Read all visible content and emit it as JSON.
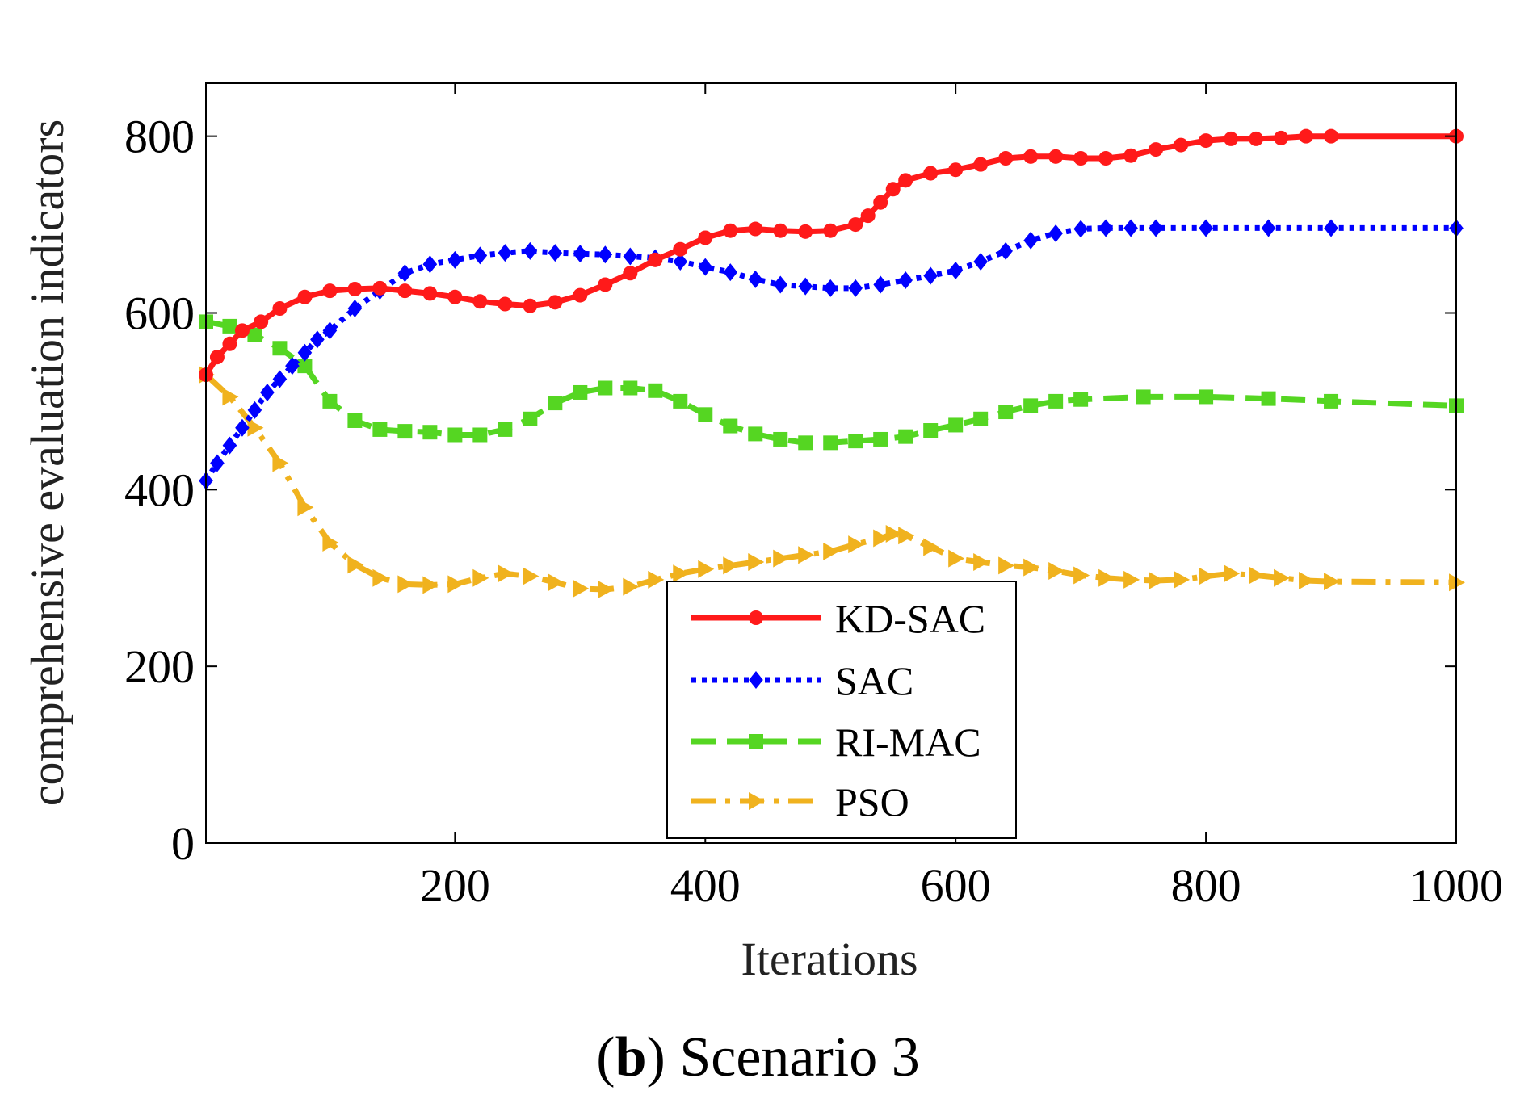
{
  "chart_data": {
    "type": "line",
    "xlabel": "Iterations",
    "ylabel": "comprehensive evaluation indicators",
    "xlim": [
      1,
      1000
    ],
    "ylim": [
      0,
      860
    ],
    "x_ticks": [
      200,
      400,
      600,
      800,
      1000
    ],
    "y_ticks": [
      0,
      200,
      400,
      600,
      800
    ],
    "grid": false,
    "legend_position": "bottom-center",
    "series": [
      {
        "name": "KD-SAC",
        "color": "#ff1a1a",
        "dash": "solid",
        "marker": "circle",
        "x": [
          1,
          10,
          20,
          30,
          45,
          60,
          80,
          100,
          120,
          140,
          160,
          180,
          200,
          220,
          240,
          260,
          280,
          300,
          320,
          340,
          360,
          380,
          400,
          420,
          440,
          460,
          480,
          500,
          520,
          530,
          540,
          550,
          560,
          580,
          600,
          620,
          640,
          660,
          680,
          700,
          720,
          740,
          760,
          780,
          800,
          820,
          840,
          860,
          880,
          900,
          1000
        ],
        "y": [
          530,
          550,
          565,
          580,
          590,
          605,
          618,
          625,
          627,
          628,
          625,
          622,
          618,
          613,
          610,
          608,
          612,
          620,
          632,
          645,
          660,
          672,
          685,
          693,
          695,
          693,
          692,
          693,
          700,
          710,
          725,
          740,
          750,
          758,
          762,
          768,
          775,
          777,
          777,
          775,
          775,
          778,
          785,
          790,
          795,
          797,
          797,
          798,
          800,
          800,
          800
        ]
      },
      {
        "name": "SAC",
        "color": "#0000ff",
        "dash": "dotted",
        "marker": "diamond",
        "x": [
          1,
          10,
          20,
          30,
          40,
          50,
          60,
          70,
          80,
          90,
          100,
          120,
          140,
          160,
          180,
          200,
          220,
          240,
          260,
          280,
          300,
          320,
          340,
          360,
          380,
          400,
          420,
          440,
          460,
          480,
          500,
          520,
          540,
          560,
          580,
          600,
          620,
          640,
          660,
          680,
          700,
          720,
          740,
          760,
          800,
          850,
          900,
          1000
        ],
        "y": [
          410,
          430,
          450,
          470,
          490,
          510,
          525,
          540,
          555,
          570,
          580,
          605,
          625,
          645,
          655,
          660,
          665,
          668,
          670,
          668,
          667,
          666,
          664,
          662,
          658,
          652,
          646,
          638,
          632,
          630,
          628,
          628,
          632,
          637,
          642,
          648,
          658,
          670,
          682,
          690,
          695,
          696,
          696,
          696,
          696,
          696,
          696,
          696
        ]
      },
      {
        "name": "RI-MAC",
        "color": "#55d622",
        "dash": "dashed",
        "marker": "square",
        "x": [
          1,
          20,
          40,
          60,
          80,
          100,
          120,
          140,
          160,
          180,
          200,
          220,
          240,
          260,
          280,
          300,
          320,
          340,
          360,
          380,
          400,
          420,
          440,
          460,
          480,
          500,
          520,
          540,
          560,
          580,
          600,
          620,
          640,
          660,
          680,
          700,
          750,
          800,
          850,
          900,
          1000
        ],
        "y": [
          590,
          585,
          575,
          560,
          540,
          500,
          478,
          468,
          466,
          465,
          462,
          462,
          468,
          480,
          498,
          510,
          515,
          515,
          512,
          500,
          485,
          472,
          463,
          457,
          453,
          453,
          455,
          457,
          460,
          467,
          473,
          480,
          488,
          495,
          500,
          502,
          505,
          505,
          503,
          500,
          495
        ]
      },
      {
        "name": "PSO",
        "color": "#f0b21e",
        "dash": "dashdot",
        "marker": "triangle-right",
        "x": [
          1,
          20,
          40,
          60,
          80,
          100,
          120,
          140,
          160,
          180,
          200,
          220,
          240,
          260,
          280,
          300,
          320,
          340,
          360,
          380,
          400,
          420,
          440,
          460,
          480,
          500,
          520,
          540,
          550,
          560,
          580,
          600,
          620,
          640,
          660,
          680,
          700,
          720,
          740,
          760,
          780,
          800,
          820,
          840,
          860,
          880,
          900,
          1000
        ],
        "y": [
          530,
          505,
          470,
          430,
          380,
          340,
          315,
          300,
          293,
          292,
          293,
          300,
          305,
          302,
          295,
          288,
          287,
          290,
          298,
          305,
          310,
          314,
          318,
          322,
          326,
          330,
          338,
          345,
          350,
          348,
          335,
          322,
          318,
          314,
          312,
          308,
          303,
          300,
          298,
          297,
          298,
          302,
          305,
          303,
          300,
          297,
          296,
          295
        ]
      }
    ]
  },
  "caption": {
    "letter": "b",
    "paren_open": "(",
    "paren_close": ")",
    "text": " Scenario 3"
  }
}
